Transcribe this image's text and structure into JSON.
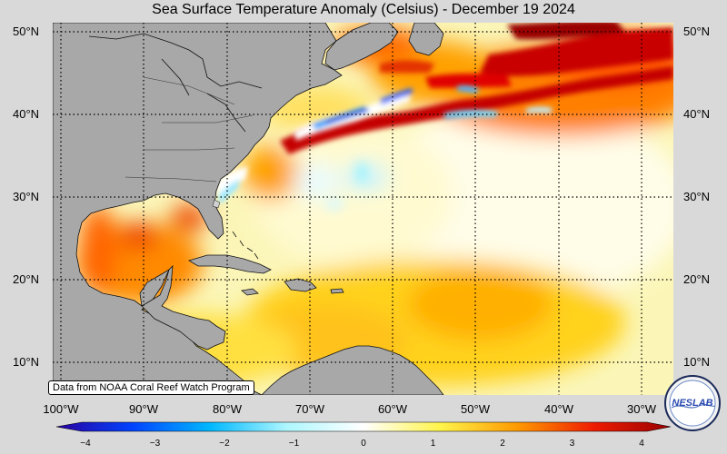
{
  "title": "Sea Surface Temperature Anomaly (Celsius) - December 19 2024",
  "latitude_labels": [
    "50°N",
    "40°N",
    "30°N",
    "20°N",
    "10°N"
  ],
  "longitude_labels": [
    "100°W",
    "90°W",
    "80°W",
    "70°W",
    "60°W",
    "50°W",
    "40°W",
    "30°W"
  ],
  "source_note": "Data from NOAA Coral Reef Watch Program",
  "colorbar": {
    "ticks": [
      "−4",
      "−3",
      "−2",
      "−1",
      "0",
      "1",
      "2",
      "3",
      "4"
    ],
    "range": [
      -4,
      4
    ],
    "colors": [
      "#2b00a0",
      "#0044ff",
      "#00b8ff",
      "#aef7ff",
      "#ffffff",
      "#fff44a",
      "#ff9a00",
      "#ee1c00",
      "#9a0000"
    ]
  },
  "map_colors": {
    "land": "#a8a8a8",
    "coast": "#111111"
  },
  "logo": {
    "text": "NESLAB"
  }
}
